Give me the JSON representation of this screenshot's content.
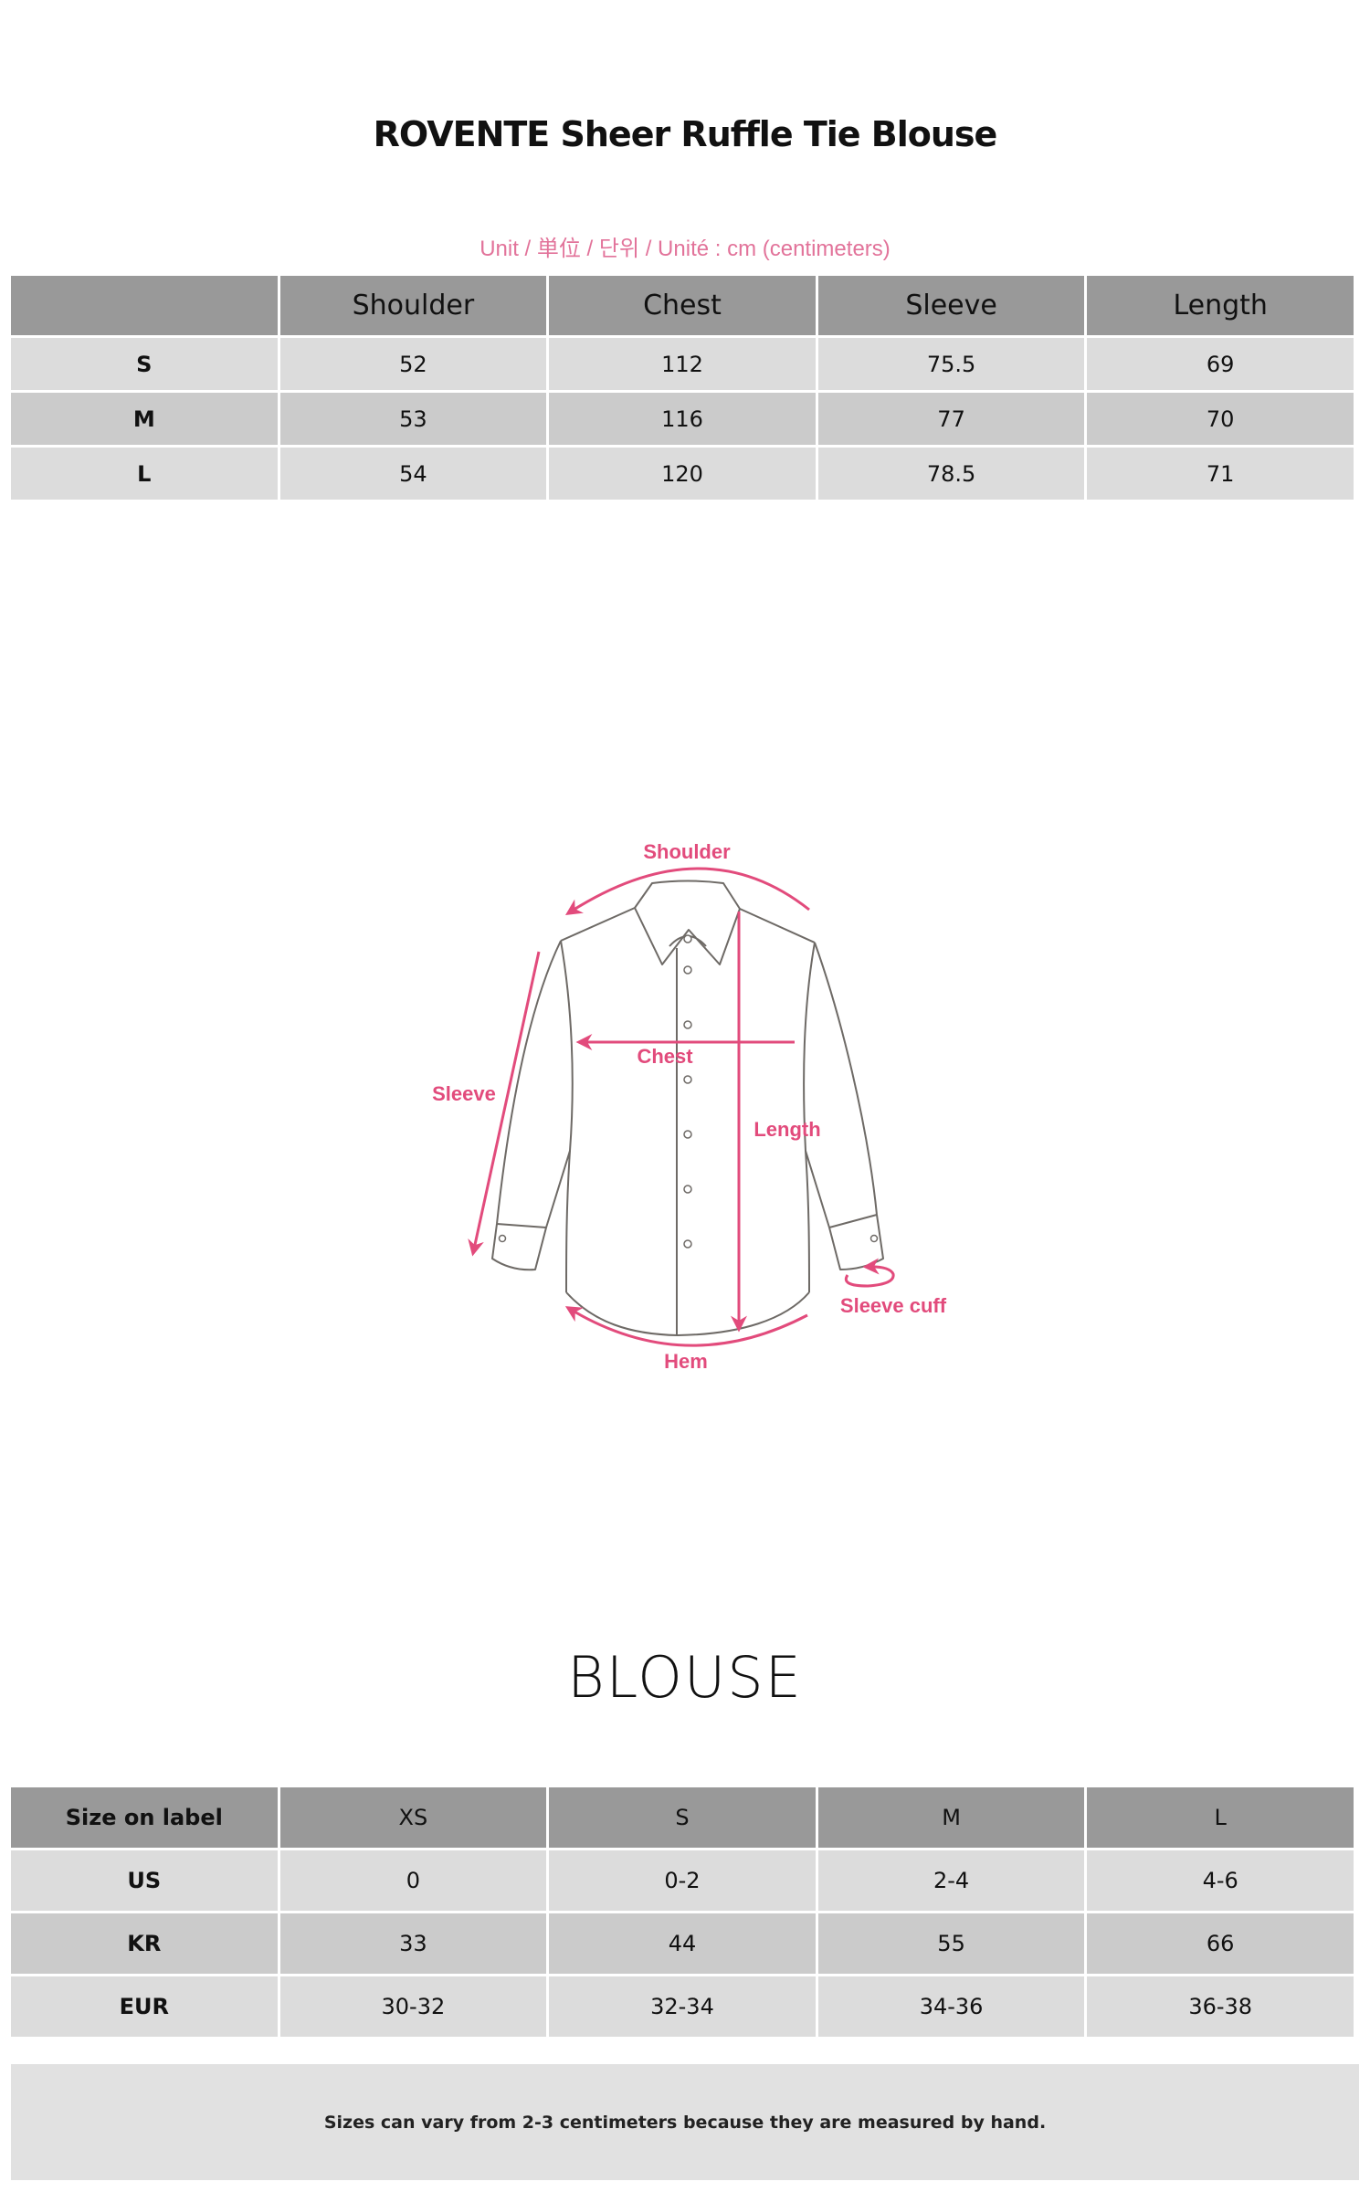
{
  "title": "ROVENTE Sheer Ruffle Tie Blouse",
  "unit_note": "Unit / 単位 / 단위 / Unité : cm (centimeters)",
  "measurements": {
    "headers": [
      "",
      "Shoulder",
      "Chest",
      "Sleeve",
      "Length"
    ],
    "rows": [
      {
        "size": "S",
        "values": [
          "52",
          "112",
          "75.5",
          "69"
        ]
      },
      {
        "size": "M",
        "values": [
          "53",
          "116",
          "77",
          "70"
        ]
      },
      {
        "size": "L",
        "values": [
          "54",
          "120",
          "78.5",
          "71"
        ]
      }
    ]
  },
  "diagram": {
    "labels": {
      "shoulder": "Shoulder",
      "chest": "Chest",
      "sleeve": "Sleeve",
      "length": "Length",
      "sleeve_cuff": "Sleeve cuff",
      "hem": "Hem"
    },
    "accent_color": "#e24b7c",
    "outline_color": "#6e6a66"
  },
  "category_title": "BLOUSE",
  "size_conversion": {
    "headers": [
      "Size on label",
      "XS",
      "S",
      "M",
      "L"
    ],
    "rows": [
      {
        "region": "US",
        "values": [
          "0",
          "0-2",
          "2-4",
          "4-6"
        ]
      },
      {
        "region": "KR",
        "values": [
          "33",
          "44",
          "55",
          "66"
        ]
      },
      {
        "region": "EUR",
        "values": [
          "30-32",
          "32-34",
          "34-36",
          "36-38"
        ]
      }
    ]
  },
  "footnote": "Sizes can vary from 2-3 centimeters because they are measured by hand.",
  "colors": {
    "header_bg": "#999999",
    "row_light": "#dcdcdc",
    "row_dark": "#cbcbcb",
    "unit_text": "#e2739a"
  }
}
